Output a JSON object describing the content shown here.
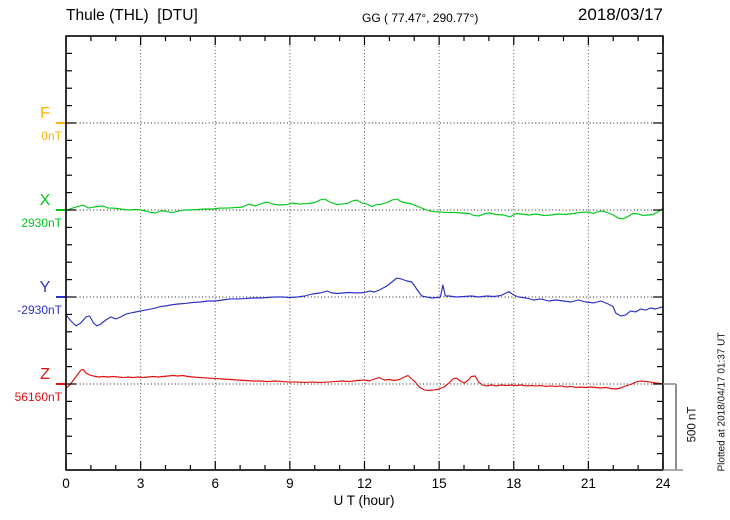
{
  "header": {
    "title": "Thule (THL)  [DTU]",
    "coordinates": "GG ( 77.47°, 290.77°)",
    "date": "2018/03/17"
  },
  "footer": {
    "plotted_at": "Plotted at 2018/04/17 01:37 UT"
  },
  "chart_data": {
    "type": "line",
    "title": "Thule (THL)  [DTU] magnetogram",
    "xlabel": "U T (hour)",
    "x_range": [
      0,
      24
    ],
    "x_major_ticks": [
      0,
      3,
      6,
      9,
      12,
      15,
      18,
      21,
      24
    ],
    "x_minor_step_hours": 1,
    "y_minor_tick_nT": 100,
    "nT_per_division": 500,
    "scale_bar_label": "500 nT",
    "grid": "dotted vertical lines every 3 hours; dotted horizontal baseline per component",
    "legend_position": "left margin, one colored label per stacked component",
    "components": [
      {
        "name": "F",
        "baseline_label": "0nT",
        "color": "#FFB300",
        "series": []
      },
      {
        "name": "X",
        "baseline_label": "2930nT",
        "color": "#00C818",
        "series": [
          [
            0,
            -6
          ],
          [
            0.2,
            8
          ],
          [
            0.4,
            17
          ],
          [
            0.7,
            29
          ],
          [
            0.9,
            11
          ],
          [
            1.1,
            17
          ],
          [
            1.3,
            20
          ],
          [
            1.5,
            23
          ],
          [
            1.7,
            11
          ],
          [
            1.9,
            11
          ],
          [
            2.2,
            6
          ],
          [
            2.5,
            0
          ],
          [
            2.8,
            3
          ],
          [
            3,
            0
          ],
          [
            3.2,
            -6
          ],
          [
            3.4,
            -14
          ],
          [
            3.6,
            -17
          ],
          [
            3.8,
            -6
          ],
          [
            4,
            -6
          ],
          [
            4.2,
            -14
          ],
          [
            4.4,
            -11
          ],
          [
            4.7,
            0
          ],
          [
            5,
            0
          ],
          [
            5.3,
            3
          ],
          [
            5.6,
            6
          ],
          [
            5.9,
            6
          ],
          [
            6.2,
            11
          ],
          [
            6.5,
            11
          ],
          [
            6.8,
            14
          ],
          [
            7.1,
            17
          ],
          [
            7.35,
            34
          ],
          [
            7.6,
            23
          ],
          [
            7.85,
            37
          ],
          [
            8.1,
            46
          ],
          [
            8.3,
            34
          ],
          [
            8.6,
            29
          ],
          [
            8.9,
            31
          ],
          [
            9.1,
            40
          ],
          [
            9.4,
            34
          ],
          [
            9.7,
            37
          ],
          [
            10,
            43
          ],
          [
            10.2,
            57
          ],
          [
            10.4,
            63
          ],
          [
            10.6,
            46
          ],
          [
            10.9,
            31
          ],
          [
            11.1,
            34
          ],
          [
            11.3,
            37
          ],
          [
            11.5,
            51
          ],
          [
            11.7,
            57
          ],
          [
            11.9,
            40
          ],
          [
            12.1,
            34
          ],
          [
            12.3,
            20
          ],
          [
            12.5,
            31
          ],
          [
            12.7,
            34
          ],
          [
            12.9,
            43
          ],
          [
            13.1,
            57
          ],
          [
            13.3,
            63
          ],
          [
            13.5,
            46
          ],
          [
            13.7,
            40
          ],
          [
            13.9,
            34
          ],
          [
            14.1,
            23
          ],
          [
            14.3,
            11
          ],
          [
            14.5,
            0
          ],
          [
            14.75,
            -9
          ],
          [
            15,
            -11
          ],
          [
            15.3,
            -14
          ],
          [
            15.6,
            -14
          ],
          [
            15.9,
            -17
          ],
          [
            16.2,
            -20
          ],
          [
            16.4,
            -31
          ],
          [
            16.6,
            -34
          ],
          [
            16.8,
            -23
          ],
          [
            17,
            -17
          ],
          [
            17.3,
            -26
          ],
          [
            17.6,
            -29
          ],
          [
            17.85,
            -40
          ],
          [
            18.1,
            -20
          ],
          [
            18.3,
            -23
          ],
          [
            18.6,
            -29
          ],
          [
            18.9,
            -23
          ],
          [
            19.2,
            -31
          ],
          [
            19.5,
            -29
          ],
          [
            19.8,
            -23
          ],
          [
            20.1,
            -26
          ],
          [
            20.4,
            -20
          ],
          [
            20.7,
            -14
          ],
          [
            21,
            -11
          ],
          [
            21.2,
            -20
          ],
          [
            21.4,
            -9
          ],
          [
            21.6,
            -6
          ],
          [
            21.8,
            -17
          ],
          [
            22,
            -29
          ],
          [
            22.2,
            -46
          ],
          [
            22.4,
            -51
          ],
          [
            22.6,
            -37
          ],
          [
            22.8,
            -20
          ],
          [
            23,
            -23
          ],
          [
            23.2,
            -31
          ],
          [
            23.4,
            -29
          ],
          [
            23.6,
            -26
          ],
          [
            23.8,
            -11
          ],
          [
            24,
            9
          ]
        ]
      },
      {
        "name": "Y",
        "baseline_label": "-2930nT",
        "color": "#2B32C8",
        "series": [
          [
            0,
            -103
          ],
          [
            0.2,
            -138
          ],
          [
            0.4,
            -166
          ],
          [
            0.6,
            -149
          ],
          [
            0.8,
            -115
          ],
          [
            0.95,
            -109
          ],
          [
            1.1,
            -149
          ],
          [
            1.25,
            -166
          ],
          [
            1.4,
            -155
          ],
          [
            1.6,
            -132
          ],
          [
            1.8,
            -115
          ],
          [
            2,
            -126
          ],
          [
            2.2,
            -115
          ],
          [
            2.4,
            -98
          ],
          [
            2.6,
            -92
          ],
          [
            2.8,
            -86
          ],
          [
            3,
            -80
          ],
          [
            3.2,
            -75
          ],
          [
            3.4,
            -69
          ],
          [
            3.6,
            -63
          ],
          [
            3.8,
            -55
          ],
          [
            4,
            -52
          ],
          [
            4.2,
            -46
          ],
          [
            4.5,
            -40
          ],
          [
            4.8,
            -37
          ],
          [
            5.1,
            -31
          ],
          [
            5.4,
            -29
          ],
          [
            5.7,
            -23
          ],
          [
            6,
            -23
          ],
          [
            6.3,
            -17
          ],
          [
            6.6,
            -11
          ],
          [
            6.9,
            -11
          ],
          [
            7.2,
            -9
          ],
          [
            7.5,
            -6
          ],
          [
            7.8,
            -6
          ],
          [
            8.1,
            -3
          ],
          [
            8.4,
            0
          ],
          [
            8.7,
            0
          ],
          [
            9,
            -3
          ],
          [
            9.3,
            0
          ],
          [
            9.6,
            6
          ],
          [
            9.9,
            17
          ],
          [
            10.2,
            23
          ],
          [
            10.5,
            34
          ],
          [
            10.7,
            23
          ],
          [
            10.9,
            20
          ],
          [
            11.1,
            23
          ],
          [
            11.4,
            26
          ],
          [
            11.7,
            23
          ],
          [
            12,
            26
          ],
          [
            12.2,
            34
          ],
          [
            12.4,
            29
          ],
          [
            12.6,
            40
          ],
          [
            12.9,
            63
          ],
          [
            13.1,
            86
          ],
          [
            13.3,
            109
          ],
          [
            13.5,
            103
          ],
          [
            13.7,
            92
          ],
          [
            13.9,
            86
          ],
          [
            14.1,
            46
          ],
          [
            14.3,
            6
          ],
          [
            14.5,
            0
          ],
          [
            14.7,
            -6
          ],
          [
            14.9,
            -3
          ],
          [
            15.05,
            0
          ],
          [
            15.15,
            69
          ],
          [
            15.25,
            6
          ],
          [
            15.4,
            6
          ],
          [
            15.7,
            0
          ],
          [
            16,
            3
          ],
          [
            16.3,
            6
          ],
          [
            16.6,
            0
          ],
          [
            16.9,
            6
          ],
          [
            17.2,
            3
          ],
          [
            17.5,
            9
          ],
          [
            17.8,
            31
          ],
          [
            18,
            11
          ],
          [
            18.2,
            0
          ],
          [
            18.5,
            -6
          ],
          [
            18.8,
            -17
          ],
          [
            19.1,
            -11
          ],
          [
            19.4,
            -23
          ],
          [
            19.7,
            -17
          ],
          [
            20,
            -23
          ],
          [
            20.3,
            -29
          ],
          [
            20.6,
            -17
          ],
          [
            20.9,
            -29
          ],
          [
            21.2,
            -34
          ],
          [
            21.5,
            -23
          ],
          [
            21.8,
            -40
          ],
          [
            22,
            -57
          ],
          [
            22.1,
            -92
          ],
          [
            22.3,
            -109
          ],
          [
            22.5,
            -103
          ],
          [
            22.7,
            -80
          ],
          [
            22.9,
            -86
          ],
          [
            23.1,
            -69
          ],
          [
            23.3,
            -75
          ],
          [
            23.5,
            -63
          ],
          [
            23.7,
            -69
          ],
          [
            23.9,
            -60
          ],
          [
            24,
            -57
          ]
        ]
      },
      {
        "name": "Z",
        "baseline_label": "56160nT",
        "color": "#E01010",
        "series": [
          [
            0,
            -23
          ],
          [
            0.15,
            -6
          ],
          [
            0.3,
            23
          ],
          [
            0.45,
            52
          ],
          [
            0.6,
            80
          ],
          [
            0.7,
            83
          ],
          [
            0.8,
            63
          ],
          [
            0.95,
            52
          ],
          [
            1.1,
            46
          ],
          [
            1.3,
            40
          ],
          [
            1.5,
            43
          ],
          [
            1.7,
            40
          ],
          [
            1.9,
            43
          ],
          [
            2.1,
            40
          ],
          [
            2.3,
            37
          ],
          [
            2.5,
            40
          ],
          [
            2.7,
            37
          ],
          [
            2.9,
            40
          ],
          [
            3.1,
            37
          ],
          [
            3.3,
            40
          ],
          [
            3.5,
            43
          ],
          [
            3.7,
            40
          ],
          [
            3.9,
            43
          ],
          [
            4.1,
            46
          ],
          [
            4.3,
            49
          ],
          [
            4.5,
            46
          ],
          [
            4.7,
            49
          ],
          [
            4.9,
            43
          ],
          [
            5.1,
            40
          ],
          [
            5.4,
            37
          ],
          [
            5.7,
            34
          ],
          [
            6,
            31
          ],
          [
            6.3,
            29
          ],
          [
            6.6,
            26
          ],
          [
            6.9,
            23
          ],
          [
            7.2,
            20
          ],
          [
            7.5,
            17
          ],
          [
            7.8,
            17
          ],
          [
            8.1,
            14
          ],
          [
            8.4,
            17
          ],
          [
            8.7,
            14
          ],
          [
            9,
            11
          ],
          [
            9.3,
            11
          ],
          [
            9.6,
            9
          ],
          [
            9.9,
            11
          ],
          [
            10.2,
            9
          ],
          [
            10.5,
            11
          ],
          [
            10.8,
            14
          ],
          [
            11.1,
            17
          ],
          [
            11.4,
            14
          ],
          [
            11.7,
            20
          ],
          [
            12,
            23
          ],
          [
            12.2,
            17
          ],
          [
            12.4,
            29
          ],
          [
            12.6,
            37
          ],
          [
            12.8,
            23
          ],
          [
            13,
            26
          ],
          [
            13.2,
            20
          ],
          [
            13.4,
            26
          ],
          [
            13.6,
            40
          ],
          [
            13.75,
            49
          ],
          [
            13.9,
            29
          ],
          [
            14.05,
            9
          ],
          [
            14.2,
            -17
          ],
          [
            14.4,
            -34
          ],
          [
            14.6,
            -37
          ],
          [
            14.8,
            -34
          ],
          [
            15,
            -29
          ],
          [
            15.2,
            -17
          ],
          [
            15.4,
            6
          ],
          [
            15.55,
            29
          ],
          [
            15.7,
            34
          ],
          [
            15.85,
            17
          ],
          [
            16,
            6
          ],
          [
            16.15,
            20
          ],
          [
            16.3,
            43
          ],
          [
            16.45,
            46
          ],
          [
            16.6,
            9
          ],
          [
            16.75,
            -6
          ],
          [
            16.9,
            -11
          ],
          [
            17.1,
            -6
          ],
          [
            17.3,
            -11
          ],
          [
            17.5,
            -6
          ],
          [
            17.7,
            -9
          ],
          [
            17.9,
            -6
          ],
          [
            18.1,
            -9
          ],
          [
            18.3,
            -6
          ],
          [
            18.5,
            -11
          ],
          [
            18.7,
            -9
          ],
          [
            18.9,
            -11
          ],
          [
            19.1,
            -9
          ],
          [
            19.3,
            -14
          ],
          [
            19.5,
            -11
          ],
          [
            19.7,
            -14
          ],
          [
            19.9,
            -11
          ],
          [
            20.1,
            -17
          ],
          [
            20.3,
            -14
          ],
          [
            20.5,
            -20
          ],
          [
            20.7,
            -17
          ],
          [
            20.9,
            -20
          ],
          [
            21.1,
            -17
          ],
          [
            21.3,
            -20
          ],
          [
            21.5,
            -23
          ],
          [
            21.7,
            -20
          ],
          [
            21.9,
            -26
          ],
          [
            22.1,
            -29
          ],
          [
            22.3,
            -23
          ],
          [
            22.5,
            -11
          ],
          [
            22.7,
            -3
          ],
          [
            22.9,
            11
          ],
          [
            23.1,
            17
          ],
          [
            23.3,
            14
          ],
          [
            23.5,
            11
          ],
          [
            23.7,
            6
          ],
          [
            23.9,
            3
          ],
          [
            24,
            0
          ]
        ]
      }
    ]
  },
  "colors": {
    "axis": "#000000",
    "grid": "#555555",
    "baseline_dots": "#222222",
    "scale_bar": "#909090",
    "background": "#ffffff"
  }
}
